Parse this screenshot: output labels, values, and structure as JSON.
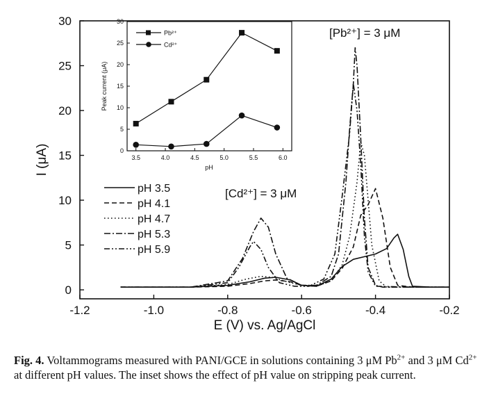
{
  "chart_data": [
    {
      "type": "line",
      "xlabel": "E (V) vs. Ag/AgCl",
      "ylabel": "I (μA)",
      "xlim": [
        -1.2,
        -0.2
      ],
      "ylim": [
        -1,
        30
      ],
      "xticks": [
        "-1.2",
        "-1.0",
        "-0.8",
        "-0.6",
        "-0.4",
        "-0.2"
      ],
      "yticks": [
        "0",
        "5",
        "10",
        "15",
        "20",
        "25",
        "30"
      ],
      "legend": [
        "pH 3.5",
        "pH 4.1",
        "pH 4.7",
        "pH 5.3",
        "pH 5.9"
      ],
      "legend_placement": "left",
      "annotations": [
        "[Pb²⁺] = 3 μM",
        "[Cd²⁺] = 3 μM"
      ],
      "series": [
        {
          "name": "pH 3.5",
          "style": "solid",
          "x": [
            -1.09,
            -0.9,
            -0.8,
            -0.74,
            -0.7,
            -0.67,
            -0.63,
            -0.6,
            -0.56,
            -0.52,
            -0.49,
            -0.46,
            -0.43,
            -0.4,
            -0.37,
            -0.35,
            -0.34,
            -0.325,
            -0.31,
            -0.3,
            -0.25,
            -0.2
          ],
          "y": [
            0.3,
            0.3,
            0.5,
            0.9,
            1.3,
            1.4,
            1.1,
            0.5,
            0.4,
            1.2,
            2.6,
            3.4,
            3.7,
            4.0,
            4.6,
            5.8,
            6.2,
            4.5,
            1.5,
            0.4,
            0.3,
            0.3
          ]
        },
        {
          "name": "pH 4.1",
          "style": "dashed",
          "x": [
            -1.09,
            -0.9,
            -0.8,
            -0.74,
            -0.7,
            -0.67,
            -0.63,
            -0.6,
            -0.56,
            -0.52,
            -0.49,
            -0.46,
            -0.44,
            -0.42,
            -0.4,
            -0.38,
            -0.36,
            -0.34,
            -0.3,
            -0.25,
            -0.2
          ],
          "y": [
            0.3,
            0.3,
            0.4,
            0.7,
            1.0,
            1.1,
            0.9,
            0.5,
            0.4,
            1.0,
            2.4,
            4.8,
            8.3,
            9.5,
            11.3,
            8.0,
            2.5,
            0.5,
            0.3,
            0.3,
            0.3
          ]
        },
        {
          "name": "pH 4.7",
          "style": "dotted",
          "x": [
            -1.09,
            -0.9,
            -0.8,
            -0.75,
            -0.71,
            -0.68,
            -0.64,
            -0.6,
            -0.56,
            -0.52,
            -0.49,
            -0.47,
            -0.45,
            -0.44,
            -0.43,
            -0.42,
            -0.41,
            -0.39,
            -0.37,
            -0.3,
            -0.2
          ],
          "y": [
            0.3,
            0.3,
            0.6,
            1.2,
            1.5,
            1.4,
            0.9,
            0.5,
            0.4,
            1.0,
            2.8,
            6.0,
            12.0,
            16.5,
            15.0,
            10.0,
            5.0,
            1.0,
            0.3,
            0.3,
            0.3
          ]
        },
        {
          "name": "pH 5.3",
          "style": "dashdot",
          "x": [
            -1.09,
            -0.9,
            -0.8,
            -0.76,
            -0.73,
            -0.71,
            -0.69,
            -0.67,
            -0.64,
            -0.6,
            -0.56,
            -0.52,
            -0.5,
            -0.48,
            -0.47,
            -0.46,
            -0.455,
            -0.45,
            -0.44,
            -0.43,
            -0.42,
            -0.4,
            -0.38,
            -0.3,
            -0.2
          ],
          "y": [
            0.3,
            0.3,
            1.0,
            3.5,
            6.5,
            8.0,
            7.0,
            4.0,
            1.3,
            0.5,
            0.5,
            1.5,
            4.0,
            12.0,
            18.0,
            23.0,
            27.0,
            25.0,
            17.0,
            8.0,
            2.5,
            0.5,
            0.3,
            0.3,
            0.3
          ]
        },
        {
          "name": "pH 5.9",
          "style": "dashdotdot",
          "x": [
            -1.09,
            -0.9,
            -0.8,
            -0.77,
            -0.74,
            -0.73,
            -0.71,
            -0.69,
            -0.66,
            -0.62,
            -0.58,
            -0.54,
            -0.51,
            -0.49,
            -0.47,
            -0.46,
            -0.45,
            -0.44,
            -0.43,
            -0.42,
            -0.4,
            -0.3,
            -0.2
          ],
          "y": [
            0.3,
            0.3,
            0.8,
            2.5,
            4.8,
            5.4,
            4.5,
            2.5,
            0.8,
            0.4,
            0.4,
            1.2,
            4.0,
            10.5,
            17.5,
            23.0,
            20.0,
            14.0,
            6.0,
            2.0,
            0.4,
            0.3,
            0.3
          ]
        }
      ]
    },
    {
      "type": "line",
      "inset": true,
      "xlabel": "pH",
      "ylabel": "Peak current (μA)",
      "xlim": [
        3.35,
        6.15
      ],
      "ylim": [
        0,
        30
      ],
      "xticks": [
        "3.5",
        "4.0",
        "4.5",
        "5.0",
        "5.5",
        "6.0"
      ],
      "yticks": [
        "0",
        "5",
        "10",
        "15",
        "20",
        "25",
        "30"
      ],
      "legend_placement": "top-left",
      "series": [
        {
          "name": "Pb²⁺",
          "marker": "square",
          "x": [
            3.5,
            4.1,
            4.7,
            5.3,
            5.9
          ],
          "y": [
            6.3,
            11.4,
            16.5,
            27.4,
            23.2
          ]
        },
        {
          "name": "Cd²⁺",
          "marker": "circle",
          "x": [
            3.5,
            4.1,
            4.7,
            5.3,
            5.9
          ],
          "y": [
            1.4,
            1.0,
            1.6,
            8.2,
            5.4
          ]
        }
      ]
    }
  ],
  "caption": {
    "label": "Fig. 4.",
    "text_1": " Voltammograms measured with PANI/GCE in solutions containing 3 μM Pb",
    "sup_1": "2+",
    "text_2": " and 3 μM Cd",
    "sup_2": "2+",
    "text_3": " at different pH values. The inset shows the effect of pH value on stripping peak current."
  }
}
